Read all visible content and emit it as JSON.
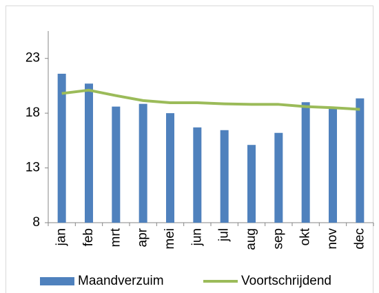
{
  "chart_data": {
    "type": "bar",
    "categories": [
      "jan",
      "feb",
      "mrt",
      "apr",
      "mei",
      "jun",
      "jul",
      "aug",
      "sep",
      "okt",
      "nov",
      "dec"
    ],
    "series": [
      {
        "name": "Maandverzuim",
        "type": "bar",
        "color": "#4f81bd",
        "values": [
          21.6,
          20.7,
          18.6,
          18.85,
          18.0,
          16.7,
          16.45,
          15.1,
          16.2,
          19.0,
          18.5,
          19.35
        ]
      },
      {
        "name": "Voortschrijdend",
        "type": "line",
        "color": "#9bbb59",
        "values": [
          19.8,
          20.1,
          19.6,
          19.15,
          18.95,
          18.95,
          18.85,
          18.8,
          18.8,
          18.6,
          18.5,
          18.35
        ]
      }
    ],
    "ylim": [
      8,
      25.5
    ],
    "yticks": [
      8,
      13,
      18,
      23
    ],
    "grid": false,
    "legend": "bottom"
  }
}
